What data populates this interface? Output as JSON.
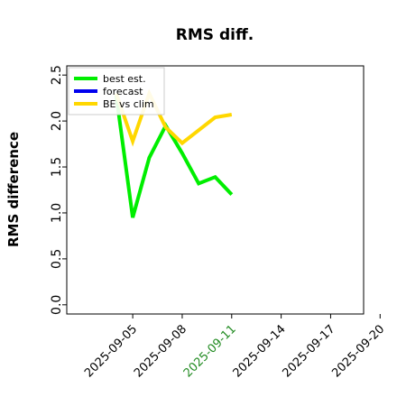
{
  "chart_data": {
    "type": "line",
    "title": "RMS diff.",
    "xlabel": "",
    "ylabel": "RMS difference",
    "ylim": [
      -0.1,
      2.6
    ],
    "xlim": [
      "2025-09-01",
      "2025-09-19"
    ],
    "grid": false,
    "legend_position": "top-left",
    "y_ticks": [
      "0.0",
      "0.5",
      "1.0",
      "1.5",
      "2.0",
      "2.5"
    ],
    "x_ticks": [
      {
        "label": "2025-09-05",
        "date": "2025-09-05",
        "color": "#000000"
      },
      {
        "label": "2025-09-08",
        "date": "2025-09-08",
        "color": "#000000"
      },
      {
        "label": "2025-09-11",
        "date": "2025-09-11",
        "color": "#228b22"
      },
      {
        "label": "2025-09-14",
        "date": "2025-09-14",
        "color": "#000000"
      },
      {
        "label": "2025-09-17",
        "date": "2025-09-17",
        "color": "#000000"
      },
      {
        "label": "2025-09-20",
        "date": "2025-09-20",
        "color": "#000000"
      }
    ],
    "series": [
      {
        "name": "best est.",
        "color": "#00ee00",
        "x": [
          "2025-09-04",
          "2025-09-05",
          "2025-09-06",
          "2025-09-07",
          "2025-09-08",
          "2025-09-09",
          "2025-09-10",
          "2025-09-11"
        ],
        "values": [
          2.28,
          0.95,
          1.6,
          1.95,
          1.65,
          1.32,
          1.39,
          1.2
        ]
      },
      {
        "name": "forecast",
        "color": "#0000ee",
        "x": [],
        "values": []
      },
      {
        "name": "BE vs clim",
        "color": "#ffd700",
        "x": [
          "2025-09-04",
          "2025-09-05",
          "2025-09-06",
          "2025-09-07",
          "2025-09-08",
          "2025-09-09",
          "2025-09-10",
          "2025-09-11"
        ],
        "values": [
          2.3,
          1.78,
          2.3,
          1.93,
          1.76,
          1.9,
          2.04,
          2.07
        ]
      }
    ]
  }
}
